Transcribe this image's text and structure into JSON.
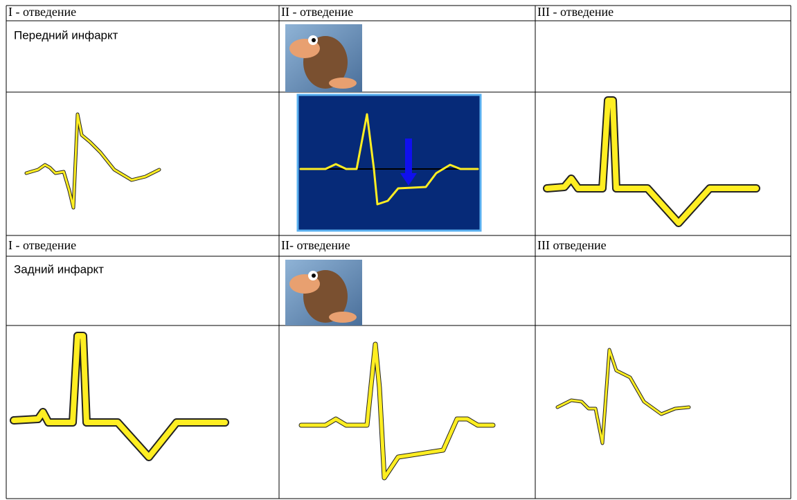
{
  "sections": [
    {
      "leads": [
        "I - отведение",
        "II - отведение",
        "III - отведение"
      ],
      "label": "Передний инфаркт"
    },
    {
      "leads": [
        "I - отведение",
        "II-  отведение",
        "III отведение"
      ],
      "label": "Задний инфаркт"
    }
  ]
}
